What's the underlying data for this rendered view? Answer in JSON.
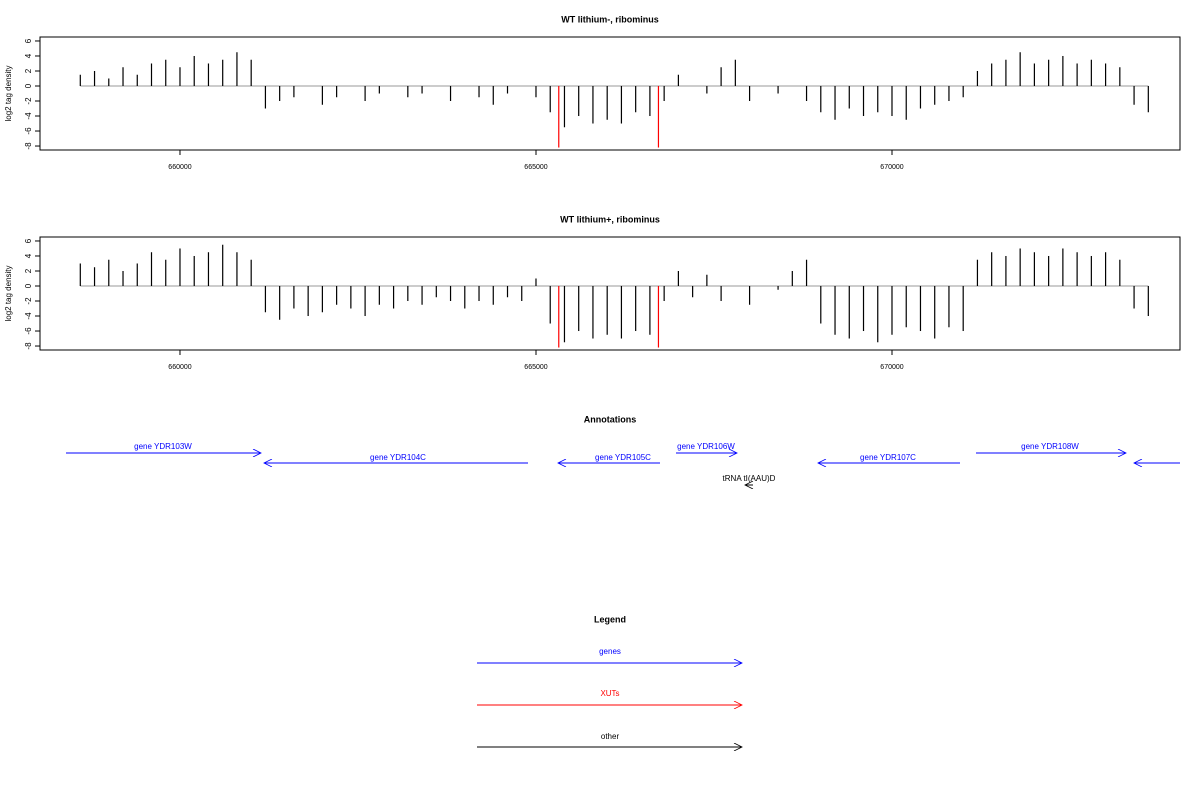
{
  "chart_data": [
    {
      "type": "bar",
      "title": "WT lithium-, ribominus",
      "ylabel": "log2 tag density",
      "xlim": [
        658034,
        674045
      ],
      "ylim": [
        -8.53,
        6.53
      ],
      "xticks": [
        660000,
        665000,
        670000
      ],
      "yticks": [
        -8,
        -6,
        -4,
        -2,
        0,
        2,
        4,
        6
      ],
      "series": [
        {
          "color": "#000000",
          "x": [
            658600,
            658800,
            659000,
            659200,
            659400,
            659600,
            659800,
            660000,
            660200,
            660400,
            660600,
            660800,
            661000,
            661200,
            661400,
            661600,
            661800,
            662000,
            662200,
            662400,
            662600,
            662800,
            663000,
            663200,
            663400,
            663600,
            663800,
            664000,
            664200,
            664400,
            664600,
            664800,
            665000,
            665200,
            665400,
            665600,
            665800,
            666000,
            666200,
            666400,
            666600,
            666800,
            667000,
            667200,
            667400,
            667600,
            667800,
            668000,
            668200,
            668400,
            668600,
            668800,
            669000,
            669200,
            669400,
            669600,
            669800,
            670000,
            670200,
            670400,
            670600,
            670800,
            671000,
            671200,
            671400,
            671600,
            671800,
            672000,
            672200,
            672400,
            672600,
            672800,
            673000,
            673200,
            673400,
            673600
          ],
          "values": [
            1.5,
            2,
            1,
            2.5,
            1.5,
            3,
            3.5,
            2.5,
            4,
            3,
            3.5,
            4.5,
            3.5,
            -3,
            -2,
            -1.5,
            0,
            -2.5,
            -1.5,
            0,
            -2,
            -1,
            0,
            -1.5,
            -1,
            0,
            -2,
            0,
            -1.5,
            -2.5,
            -1,
            0,
            -1.5,
            -3.5,
            -5.5,
            -4,
            -5,
            -4.5,
            -5,
            -3.5,
            -4,
            -2,
            1.5,
            0,
            -1,
            2.5,
            3.5,
            -2,
            0,
            -1,
            0,
            -2,
            -3.5,
            -4.5,
            -3,
            -4,
            -3.5,
            -4,
            -4.5,
            -3,
            -2.5,
            -2,
            -1.5,
            2,
            3,
            3.5,
            4.5,
            3,
            3.5,
            4,
            3,
            3.5,
            3,
            2.5,
            -2.5,
            -3.5
          ]
        },
        {
          "color": "#ff0000",
          "x": [
            665320,
            666720
          ],
          "values": [
            -8.2,
            -8.2
          ]
        }
      ]
    },
    {
      "type": "bar",
      "title": "WT lithium+, ribominus",
      "ylabel": "log2 tag density",
      "xlim": [
        658034,
        674045
      ],
      "ylim": [
        -8.53,
        6.53
      ],
      "xticks": [
        660000,
        665000,
        670000
      ],
      "yticks": [
        -8,
        -6,
        -4,
        -2,
        0,
        2,
        4,
        6
      ],
      "series": [
        {
          "color": "#000000",
          "x": [
            658600,
            658800,
            659000,
            659200,
            659400,
            659600,
            659800,
            660000,
            660200,
            660400,
            660600,
            660800,
            661000,
            661200,
            661400,
            661600,
            661800,
            662000,
            662200,
            662400,
            662600,
            662800,
            663000,
            663200,
            663400,
            663600,
            663800,
            664000,
            664200,
            664400,
            664600,
            664800,
            665000,
            665200,
            665400,
            665600,
            665800,
            666000,
            666200,
            666400,
            666600,
            666800,
            667000,
            667200,
            667400,
            667600,
            667800,
            668000,
            668200,
            668400,
            668600,
            668800,
            669000,
            669200,
            669400,
            669600,
            669800,
            670000,
            670200,
            670400,
            670600,
            670800,
            671000,
            671200,
            671400,
            671600,
            671800,
            672000,
            672200,
            672400,
            672600,
            672800,
            673000,
            673200,
            673400,
            673600
          ],
          "values": [
            3,
            2.5,
            3.5,
            2,
            3,
            4.5,
            3.5,
            5,
            4,
            4.5,
            5.5,
            4.5,
            3.5,
            -3.5,
            -4.5,
            -3,
            -4,
            -3.5,
            -2.5,
            -3,
            -4,
            -2.5,
            -3,
            -2,
            -2.5,
            -1.5,
            -2,
            -3,
            -2,
            -2.5,
            -1.5,
            -2,
            1,
            -5,
            -7.5,
            -6,
            -7,
            -6.5,
            -7,
            -6,
            -6.5,
            -2,
            2,
            -1.5,
            1.5,
            -2,
            0,
            -2.5,
            0,
            -0.5,
            2,
            3.5,
            -5,
            -6.5,
            -7,
            -6,
            -7.5,
            -6.5,
            -5.5,
            -6,
            -7,
            -5.5,
            -6,
            3.5,
            4.5,
            4,
            5,
            4.5,
            4,
            5,
            4.5,
            4,
            4.5,
            3.5,
            -3,
            -4
          ]
        },
        {
          "color": "#ff0000",
          "x": [
            665320,
            666720
          ],
          "values": [
            -8.2,
            -8.2
          ]
        }
      ]
    }
  ],
  "annotations": {
    "title": "Annotations",
    "genes": [
      "gene YDR103W",
      "gene YDR104C",
      "gene YDR105C",
      "gene YDR106W",
      "gene YDR107C",
      "gene YDR108W"
    ],
    "other": [
      "tRNA tI(AAU)D"
    ]
  },
  "legend": {
    "title": "Legend",
    "items": [
      "genes",
      "XUTs",
      "other"
    ]
  }
}
